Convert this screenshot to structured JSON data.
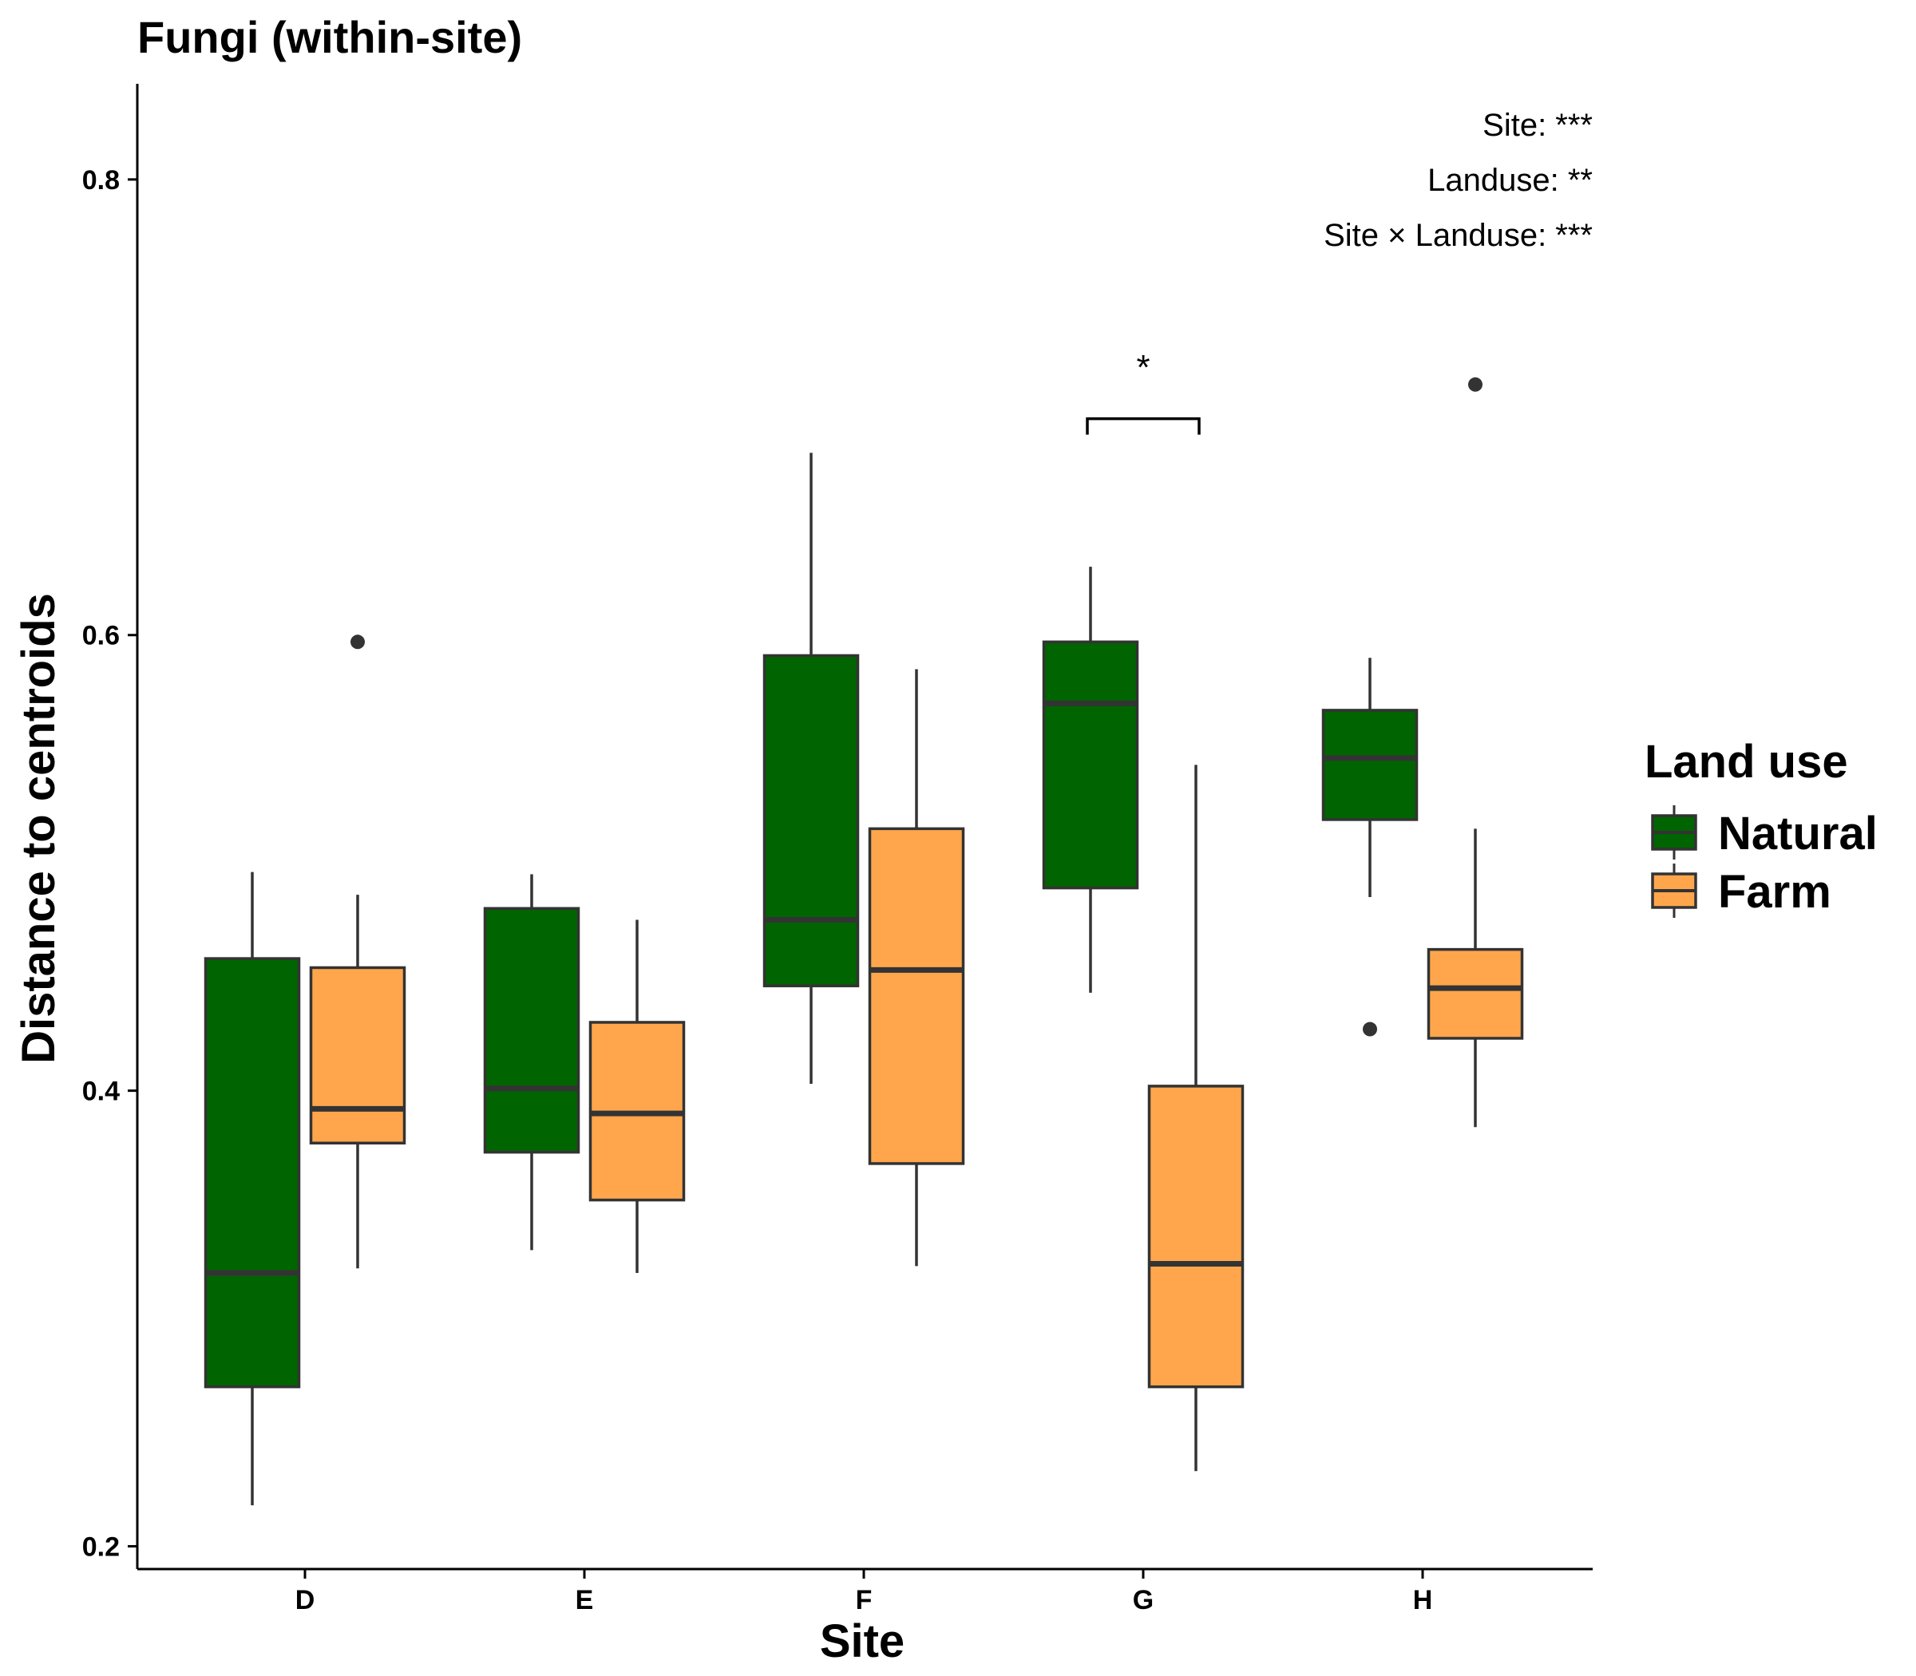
{
  "chart_data": {
    "type": "box",
    "title": "Fungi (within-site)",
    "xlabel": "Site",
    "ylabel": "Distance to centroids",
    "ylim": [
      0.19,
      0.842
    ],
    "yticks": [
      0.2,
      0.4,
      0.6,
      0.8
    ],
    "ytick_labels": [
      "0.2",
      "0.4",
      "0.6",
      "0.8"
    ],
    "categories": [
      "D",
      "E",
      "F",
      "G",
      "H"
    ],
    "legend": {
      "title": "Land use",
      "placement": "right",
      "entries": [
        {
          "label": "Natural",
          "color": "#006400"
        },
        {
          "label": "Farm",
          "color": "#FFA64D"
        }
      ]
    },
    "annotations": [
      "Site: ***",
      "Landuse: **",
      "Site × Landuse: ***"
    ],
    "significance": [
      {
        "category": "G",
        "label": "*",
        "y": 0.695,
        "label_y": 0.718
      }
    ],
    "series": [
      {
        "name": "Natural",
        "color": "#006400",
        "boxes": [
          {
            "category": "D",
            "whisker_low": 0.218,
            "q1": 0.27,
            "median": 0.32,
            "q3": 0.458,
            "whisker_high": 0.496,
            "outliers": []
          },
          {
            "category": "E",
            "whisker_low": 0.33,
            "q1": 0.373,
            "median": 0.401,
            "q3": 0.48,
            "whisker_high": 0.495,
            "outliers": []
          },
          {
            "category": "F",
            "whisker_low": 0.403,
            "q1": 0.446,
            "median": 0.475,
            "q3": 0.591,
            "whisker_high": 0.68,
            "outliers": []
          },
          {
            "category": "G",
            "whisker_low": 0.443,
            "q1": 0.489,
            "median": 0.57,
            "q3": 0.597,
            "whisker_high": 0.63,
            "outliers": []
          },
          {
            "category": "H",
            "whisker_low": 0.485,
            "q1": 0.519,
            "median": 0.546,
            "q3": 0.567,
            "whisker_high": 0.59,
            "outliers": [
              0.427
            ]
          }
        ]
      },
      {
        "name": "Farm",
        "color": "#FFA64D",
        "boxes": [
          {
            "category": "D",
            "whisker_low": 0.322,
            "q1": 0.377,
            "median": 0.392,
            "q3": 0.454,
            "whisker_high": 0.486,
            "outliers": [
              0.597
            ]
          },
          {
            "category": "E",
            "whisker_low": 0.32,
            "q1": 0.352,
            "median": 0.39,
            "q3": 0.43,
            "whisker_high": 0.475,
            "outliers": []
          },
          {
            "category": "F",
            "whisker_low": 0.323,
            "q1": 0.368,
            "median": 0.453,
            "q3": 0.515,
            "whisker_high": 0.585,
            "outliers": []
          },
          {
            "category": "G",
            "whisker_low": 0.233,
            "q1": 0.27,
            "median": 0.324,
            "q3": 0.402,
            "whisker_high": 0.543,
            "outliers": []
          },
          {
            "category": "H",
            "whisker_low": 0.384,
            "q1": 0.423,
            "median": 0.445,
            "q3": 0.462,
            "whisker_high": 0.515,
            "outliers": [
              0.71
            ]
          }
        ]
      }
    ]
  }
}
